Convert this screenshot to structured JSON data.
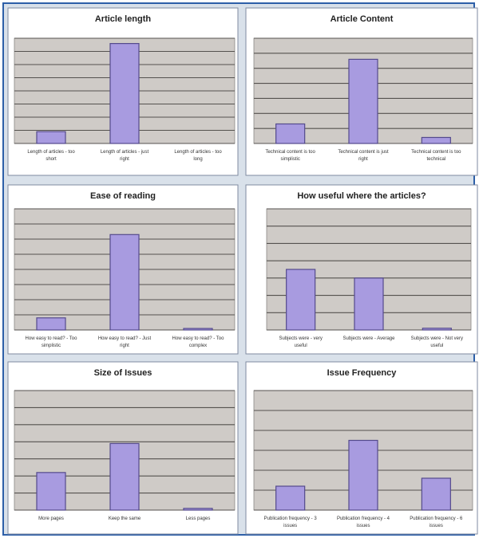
{
  "chart_data": [
    {
      "type": "bar",
      "title": "Article length",
      "categories": [
        "Length of articles - too short",
        "Length of articles - just right",
        "Length of articles - too long"
      ],
      "values": [
        0.9,
        7.6,
        0
      ],
      "ylim": [
        0,
        8
      ],
      "grid": true,
      "color": "#a89be0"
    },
    {
      "type": "bar",
      "title": "Article Content",
      "categories": [
        "Technical content is too simplistic",
        "Technical content is just right",
        "Technical content is too technical"
      ],
      "values": [
        1.3,
        5.6,
        0.4
      ],
      "ylim": [
        0,
        7
      ],
      "grid": true,
      "color": "#a89be0"
    },
    {
      "type": "bar",
      "title": "Ease of reading",
      "categories": [
        "How easy to read? - Too simplistic",
        "How easy to read? - Just right",
        "How easy to read? - Too complex"
      ],
      "values": [
        0.8,
        6.3,
        0.1
      ],
      "ylim": [
        0,
        8
      ],
      "grid": true,
      "color": "#a89be0"
    },
    {
      "type": "bar",
      "title": "How useful where the articles?",
      "categories": [
        "Subjects were - very useful",
        "Subjects were - Average",
        "Subjects were - Not very useful"
      ],
      "values": [
        3.5,
        3.0,
        0.1
      ],
      "ylim": [
        0,
        7
      ],
      "grid": true,
      "color": "#a89be0"
    },
    {
      "type": "bar",
      "title": "Size of Issues",
      "categories": [
        "More pages",
        "Keep the same",
        "Less pages"
      ],
      "values": [
        2.2,
        3.9,
        0.1
      ],
      "ylim": [
        0,
        7
      ],
      "grid": true,
      "color": "#a89be0"
    },
    {
      "type": "bar",
      "title": "Issue Frequency",
      "categories": [
        "Publication frequency - 3 issues",
        "Publication frequency - 4 issues",
        "Publication frequency - 6 issues"
      ],
      "values": [
        1.2,
        3.5,
        1.6
      ],
      "ylim": [
        0,
        6
      ],
      "grid": true,
      "color": "#a89be0"
    }
  ]
}
